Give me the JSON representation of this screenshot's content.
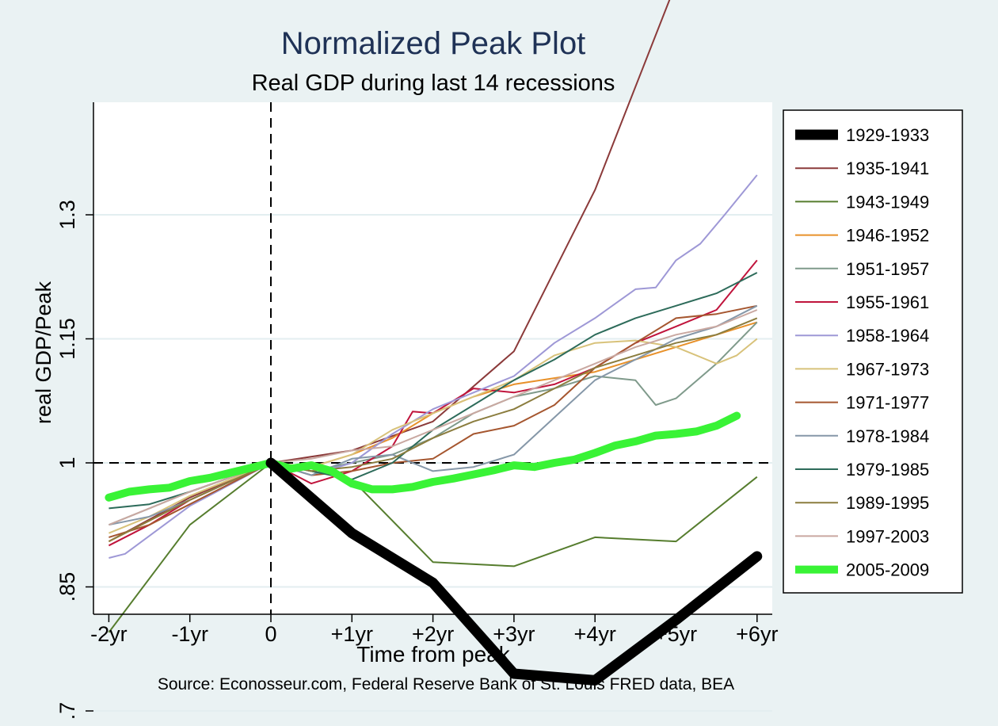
{
  "chart_data": {
    "type": "line",
    "title": "Normalized Peak Plot",
    "subtitle": "Real GDP during last 14 recessions",
    "xlabel": "Time from peak",
    "ylabel": "real GDP/Peak",
    "source": "Source: Econosseur.com, Federal Reserve Bank of St. Louis FRED data, BEA",
    "x_ticks": [
      {
        "value": -2,
        "label": "-2yr"
      },
      {
        "value": -1,
        "label": "-1yr"
      },
      {
        "value": 0,
        "label": "0"
      },
      {
        "value": 1,
        "label": "+1yr"
      },
      {
        "value": 2,
        "label": "+2yr"
      },
      {
        "value": 3,
        "label": "+3yr"
      },
      {
        "value": 4,
        "label": "+4yr"
      },
      {
        "value": 5,
        "label": "+5yr"
      },
      {
        "value": 6,
        "label": "+6yr"
      }
    ],
    "y_ticks": [
      {
        "value": 0.7,
        "label": ".7"
      },
      {
        "value": 0.85,
        "label": ".85"
      },
      {
        "value": 1.0,
        "label": "1"
      },
      {
        "value": 1.15,
        "label": "1.15"
      },
      {
        "value": 1.3,
        "label": "1.3"
      }
    ],
    "xlim": [
      -2.1,
      6.3
    ],
    "ylim": [
      0.67,
      1.85
    ],
    "grid": "horizontal",
    "legend_position": "right",
    "reference_lines": {
      "x": 0,
      "y": 1.0
    },
    "series": [
      {
        "name": "1929-1933",
        "color": "#000000",
        "width": 13,
        "points": [
          [
            0,
            1.0
          ],
          [
            1,
            0.915
          ],
          [
            2,
            0.855
          ],
          [
            3,
            0.745
          ],
          [
            4,
            0.737
          ],
          [
            5,
            0.81
          ],
          [
            6,
            0.887
          ]
        ]
      },
      {
        "name": "1935-1941",
        "color": "#8b3a3a",
        "width": 2,
        "points": [
          [
            -2,
            0.905
          ],
          [
            -1,
            0.958
          ],
          [
            0,
            1.0
          ],
          [
            1,
            1.015
          ],
          [
            2,
            1.05
          ],
          [
            3,
            1.135
          ],
          [
            4,
            1.33
          ],
          [
            5,
            1.58
          ],
          [
            6,
            1.835
          ]
        ]
      },
      {
        "name": "1943-1949",
        "color": "#567d2e",
        "width": 2,
        "points": [
          [
            -2,
            0.795
          ],
          [
            -1,
            0.925
          ],
          [
            0,
            1.0
          ],
          [
            1,
            0.98
          ],
          [
            2,
            0.88
          ],
          [
            3,
            0.875
          ],
          [
            4,
            0.91
          ],
          [
            5,
            0.905
          ],
          [
            6,
            0.983
          ]
        ]
      },
      {
        "name": "1946-1952",
        "color": "#e8912a",
        "width": 2,
        "points": [
          [
            -2,
            0.905
          ],
          [
            -1.5,
            0.93
          ],
          [
            -1,
            0.955
          ],
          [
            0,
            1.0
          ],
          [
            0.5,
            0.995
          ],
          [
            1,
            1.01
          ],
          [
            1.5,
            1.03
          ],
          [
            2,
            1.06
          ],
          [
            2.5,
            1.08
          ],
          [
            3,
            1.095
          ],
          [
            4,
            1.11
          ],
          [
            5,
            1.14
          ],
          [
            6,
            1.17
          ]
        ]
      },
      {
        "name": "1951-1957",
        "color": "#7f9a8b",
        "width": 2,
        "points": [
          [
            -2,
            0.925
          ],
          [
            -1.5,
            0.945
          ],
          [
            -1,
            0.965
          ],
          [
            0,
            1.0
          ],
          [
            0.5,
            0.99
          ],
          [
            1,
            1.0
          ],
          [
            1.5,
            1.01
          ],
          [
            2,
            1.03
          ],
          [
            2.5,
            1.06
          ],
          [
            3,
            1.08
          ],
          [
            3.5,
            1.09
          ],
          [
            4,
            1.105
          ],
          [
            4.5,
            1.1
          ],
          [
            4.75,
            1.07
          ],
          [
            5,
            1.078
          ],
          [
            5.5,
            1.12
          ],
          [
            6,
            1.17
          ]
        ]
      },
      {
        "name": "1955-1961",
        "color": "#c0143c",
        "width": 2,
        "points": [
          [
            -2,
            0.9
          ],
          [
            -1.5,
            0.925
          ],
          [
            -1,
            0.955
          ],
          [
            0,
            1.0
          ],
          [
            0.5,
            0.975
          ],
          [
            1,
            0.99
          ],
          [
            1.5,
            1.02
          ],
          [
            1.75,
            1.062
          ],
          [
            2,
            1.06
          ],
          [
            2.5,
            1.09
          ],
          [
            3,
            1.085
          ],
          [
            3.5,
            1.095
          ],
          [
            4,
            1.115
          ],
          [
            4.5,
            1.145
          ],
          [
            5,
            1.165
          ],
          [
            5.5,
            1.185
          ],
          [
            6,
            1.245
          ]
        ]
      },
      {
        "name": "1958-1964",
        "color": "#9e98d6",
        "width": 2,
        "points": [
          [
            -2,
            0.885
          ],
          [
            -1.8,
            0.89
          ],
          [
            -1,
            0.948
          ],
          [
            0,
            1.0
          ],
          [
            0.5,
            0.985
          ],
          [
            1,
            1.0
          ],
          [
            1.5,
            1.035
          ],
          [
            2,
            1.065
          ],
          [
            2.5,
            1.085
          ],
          [
            3,
            1.105
          ],
          [
            3.5,
            1.145
          ],
          [
            4,
            1.175
          ],
          [
            4.5,
            1.21
          ],
          [
            4.75,
            1.212
          ],
          [
            5,
            1.245
          ],
          [
            5.3,
            1.265
          ],
          [
            5.6,
            1.3
          ],
          [
            6,
            1.348
          ]
        ]
      },
      {
        "name": "1967-1973",
        "color": "#d8c27a",
        "width": 2,
        "points": [
          [
            -2,
            0.915
          ],
          [
            -1.5,
            0.935
          ],
          [
            -1,
            0.96
          ],
          [
            0,
            1.0
          ],
          [
            0.5,
            0.995
          ],
          [
            1,
            1.01
          ],
          [
            1.5,
            1.04
          ],
          [
            2,
            1.06
          ],
          [
            2.5,
            1.08
          ],
          [
            3,
            1.1
          ],
          [
            3.5,
            1.13
          ],
          [
            4,
            1.145
          ],
          [
            4.5,
            1.148
          ],
          [
            5,
            1.14
          ],
          [
            5.5,
            1.12
          ],
          [
            5.75,
            1.13
          ],
          [
            6,
            1.15
          ]
        ]
      },
      {
        "name": "1971-1977",
        "color": "#a5562f",
        "width": 2,
        "points": [
          [
            -2,
            0.91
          ],
          [
            -1.5,
            0.925
          ],
          [
            -1,
            0.95
          ],
          [
            0,
            1.0
          ],
          [
            0.5,
            0.985
          ],
          [
            1,
            0.99
          ],
          [
            1.5,
            1.0
          ],
          [
            2,
            1.005
          ],
          [
            2.5,
            1.035
          ],
          [
            3,
            1.045
          ],
          [
            3.5,
            1.07
          ],
          [
            4,
            1.115
          ],
          [
            4.5,
            1.145
          ],
          [
            5,
            1.175
          ],
          [
            5.5,
            1.18
          ],
          [
            6,
            1.19
          ]
        ]
      },
      {
        "name": "1978-1984",
        "color": "#8597a8",
        "width": 2,
        "points": [
          [
            -2,
            0.925
          ],
          [
            -1.5,
            0.935
          ],
          [
            -1,
            0.955
          ],
          [
            0,
            1.0
          ],
          [
            0.5,
            0.985
          ],
          [
            1,
            1.005
          ],
          [
            1.5,
            1.01
          ],
          [
            2,
            0.99
          ],
          [
            2.5,
            0.995
          ],
          [
            3,
            1.01
          ],
          [
            3.5,
            1.055
          ],
          [
            4,
            1.1
          ],
          [
            4.5,
            1.125
          ],
          [
            5,
            1.15
          ],
          [
            5.5,
            1.165
          ],
          [
            6,
            1.19
          ]
        ]
      },
      {
        "name": "1979-1985",
        "color": "#2d6b5a",
        "width": 2,
        "points": [
          [
            -2,
            0.945
          ],
          [
            -1.5,
            0.95
          ],
          [
            -1,
            0.965
          ],
          [
            0,
            1.0
          ],
          [
            0.5,
            0.99
          ],
          [
            1,
            0.98
          ],
          [
            1.5,
            1.0
          ],
          [
            2,
            1.04
          ],
          [
            2.5,
            1.07
          ],
          [
            3,
            1.1
          ],
          [
            3.5,
            1.125
          ],
          [
            4,
            1.155
          ],
          [
            4.5,
            1.175
          ],
          [
            5,
            1.19
          ],
          [
            5.5,
            1.205
          ],
          [
            6,
            1.23
          ]
        ]
      },
      {
        "name": "1989-1995",
        "color": "#8b7d3f",
        "width": 2,
        "points": [
          [
            -2,
            0.905
          ],
          [
            -1.5,
            0.93
          ],
          [
            -1,
            0.955
          ],
          [
            0,
            1.0
          ],
          [
            0.5,
            0.99
          ],
          [
            1,
            0.995
          ],
          [
            1.5,
            1.005
          ],
          [
            2,
            1.03
          ],
          [
            2.5,
            1.05
          ],
          [
            3,
            1.065
          ],
          [
            3.5,
            1.09
          ],
          [
            4,
            1.115
          ],
          [
            4.5,
            1.13
          ],
          [
            5,
            1.145
          ],
          [
            5.5,
            1.155
          ],
          [
            6,
            1.175
          ]
        ]
      },
      {
        "name": "1997-2003",
        "color": "#c9a8a1",
        "width": 2,
        "points": [
          [
            -2,
            0.925
          ],
          [
            -1.5,
            0.945
          ],
          [
            -1,
            0.965
          ],
          [
            0,
            1.0
          ],
          [
            0.5,
            1.005
          ],
          [
            1,
            1.015
          ],
          [
            1.5,
            1.02
          ],
          [
            2,
            1.04
          ],
          [
            2.5,
            1.06
          ],
          [
            3,
            1.08
          ],
          [
            3.5,
            1.1
          ],
          [
            4,
            1.12
          ],
          [
            4.5,
            1.14
          ],
          [
            5,
            1.155
          ],
          [
            5.5,
            1.165
          ],
          [
            6,
            1.185
          ]
        ]
      },
      {
        "name": "2005-2009",
        "color": "#39f336",
        "width": 10,
        "points": [
          [
            -2,
            0.958
          ],
          [
            -1.75,
            0.965
          ],
          [
            -1.5,
            0.968
          ],
          [
            -1.25,
            0.97
          ],
          [
            -1,
            0.978
          ],
          [
            -0.75,
            0.982
          ],
          [
            -0.5,
            0.988
          ],
          [
            -0.25,
            0.994
          ],
          [
            0,
            1.0
          ],
          [
            0.25,
            0.993
          ],
          [
            0.5,
            0.997
          ],
          [
            0.75,
            0.99
          ],
          [
            1,
            0.975
          ],
          [
            1.25,
            0.968
          ],
          [
            1.5,
            0.968
          ],
          [
            1.75,
            0.971
          ],
          [
            2,
            0.977
          ],
          [
            2.25,
            0.981
          ],
          [
            2.5,
            0.986
          ],
          [
            2.75,
            0.991
          ],
          [
            3,
            0.997
          ],
          [
            3.25,
            0.995
          ],
          [
            3.5,
            1.0
          ],
          [
            3.75,
            1.004
          ],
          [
            4,
            1.012
          ],
          [
            4.25,
            1.021
          ],
          [
            4.5,
            1.026
          ],
          [
            4.75,
            1.033
          ],
          [
            5,
            1.035
          ],
          [
            5.25,
            1.038
          ],
          [
            5.5,
            1.045
          ],
          [
            5.75,
            1.057
          ]
        ]
      }
    ]
  }
}
